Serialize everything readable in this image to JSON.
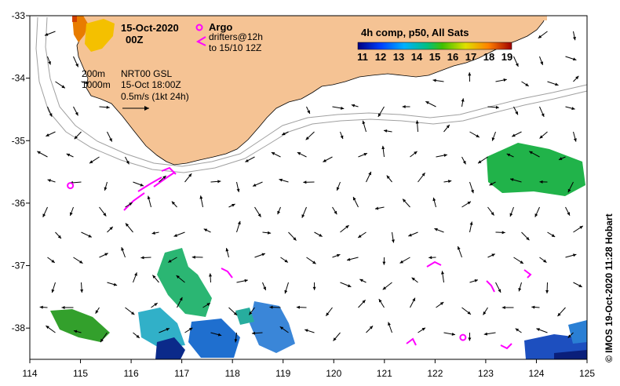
{
  "title": {
    "date": "15-Oct-2020",
    "hour": "00Z"
  },
  "legend": {
    "argo_label": "Argo",
    "drifters_line1": "drifters@12h",
    "drifters_line2": "to 15/10 12Z",
    "colorbar_title": "4h comp, p50, All Sats",
    "colorbar_ticks": [
      "11",
      "12",
      "13",
      "14",
      "15",
      "16",
      "17",
      "18",
      "19"
    ],
    "isobath_200": "200m",
    "isobath_1000": "1000m",
    "current_source": "NRT00 GSL",
    "current_time": "15-Oct 18:00Z",
    "scale_label": "0.5m/s (1kt 24h)"
  },
  "axes": {
    "x_ticks": [
      "114",
      "115",
      "116",
      "117",
      "118",
      "119",
      "120",
      "121",
      "122",
      "123",
      "124",
      "125"
    ],
    "y_ticks": [
      "-33",
      "-34",
      "-35",
      "-36",
      "-37",
      "-38"
    ]
  },
  "credit": "© IMOS 19-Oct-2020 11:28 Hobart",
  "colors": {
    "land": "#f5c394",
    "isobath": "#a0a0a0",
    "argo": "#ff00ff",
    "drifter": "#ff00ff"
  },
  "argo_floats": [
    {
      "lon": 114.8,
      "lat": -35.72
    },
    {
      "lon": 122.55,
      "lat": -38.15
    }
  ]
}
